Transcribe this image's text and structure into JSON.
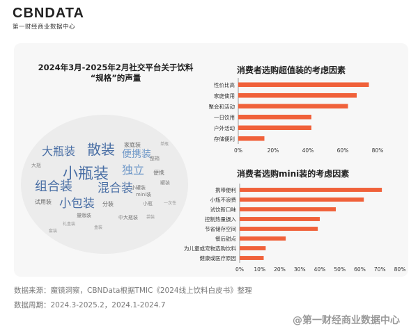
{
  "brand": {
    "name": "CBNDATA",
    "subtitle": "第一财经商业数据中心"
  },
  "wordcloud": {
    "title_line1": "2024年3月-2025年2月社交平台关于饮料",
    "title_line2": "“规格”的声量",
    "words": [
      {
        "text": "小瓶装",
        "size": 22,
        "color": "#4a6fa5"
      },
      {
        "text": "散装",
        "size": 20,
        "color": "#4a6fa5"
      },
      {
        "text": "大瓶装",
        "size": 16,
        "color": "#4a6fa5"
      },
      {
        "text": "组合装",
        "size": 18,
        "color": "#4a6fa5"
      },
      {
        "text": "混合装",
        "size": 17,
        "color": "#4a6fa5"
      },
      {
        "text": "小包装",
        "size": 17,
        "color": "#4a6fa5"
      },
      {
        "text": "独立",
        "size": 16,
        "color": "#6f98c8"
      },
      {
        "text": "便携装",
        "size": 14,
        "color": "#6f98c8"
      },
      {
        "text": "分装",
        "size": 8,
        "color": "#666"
      },
      {
        "text": "试用装",
        "size": 8,
        "color": "#666"
      },
      {
        "text": "家庭装",
        "size": 8,
        "color": "#666"
      },
      {
        "text": "小罐装",
        "size": 7,
        "color": "#777"
      },
      {
        "text": "mini装",
        "size": 7,
        "color": "#777"
      },
      {
        "text": "量贩装",
        "size": 7,
        "color": "#777"
      },
      {
        "text": "中大瓶装",
        "size": 7,
        "color": "#777"
      },
      {
        "text": "便携",
        "size": 8,
        "color": "#777"
      },
      {
        "text": "整箱",
        "size": 7,
        "color": "#888"
      },
      {
        "text": "罐装",
        "size": 7,
        "color": "#888"
      },
      {
        "text": "小瓶",
        "size": 7,
        "color": "#888"
      },
      {
        "text": "大瓶",
        "size": 7,
        "color": "#888"
      },
      {
        "text": "盒装",
        "size": 6,
        "color": "#999"
      },
      {
        "text": "袋装",
        "size": 6,
        "color": "#999"
      },
      {
        "text": "礼盒装",
        "size": 6,
        "color": "#999"
      },
      {
        "text": "单瓶",
        "size": 6,
        "color": "#999"
      },
      {
        "text": "套装",
        "size": 6,
        "color": "#999"
      },
      {
        "text": "一次性",
        "size": 6,
        "color": "#999"
      }
    ]
  },
  "chart_data": [
    {
      "type": "bar",
      "orientation": "horizontal",
      "title": "消费者选购超值装的考虑因素",
      "categories": [
        "性价比高",
        "家庭使用",
        "聚会和活动",
        "一日饮用",
        "户外活动",
        "存储便利"
      ],
      "values": [
        75,
        68,
        63,
        42,
        42,
        15
      ],
      "xlim": [
        0,
        80
      ],
      "xticks": [
        "0%",
        "20%",
        "40%",
        "60%",
        "80%"
      ],
      "bar_color": "#f0613a"
    },
    {
      "type": "bar",
      "orientation": "horizontal",
      "title": "消费者选购mini装的考虑因素",
      "categories": [
        "携带便利",
        "小瓶不浪费",
        "试饮新口味",
        "控制热量摄入",
        "节省储存空间",
        "餐后甜点",
        "为儿童或宠物选购饮料",
        "健康或医疗原因"
      ],
      "values": [
        71,
        62,
        48,
        40,
        39,
        23,
        13,
        12
      ],
      "xlim": [
        0,
        80
      ],
      "xticks": [
        "0%",
        "10%",
        "20%",
        "30%",
        "40%",
        "50%",
        "60%",
        "70%",
        "80%"
      ],
      "bar_color": "#f0613a"
    }
  ],
  "footer": {
    "source": "数据来源：魔镜洞察，CBNData根据TMIC《2024线上饮料白皮书》整理",
    "period": "数据周期：2024.3-2025.2，2024.1-2024.7"
  },
  "watermark": "@第一财经商业数据中心"
}
